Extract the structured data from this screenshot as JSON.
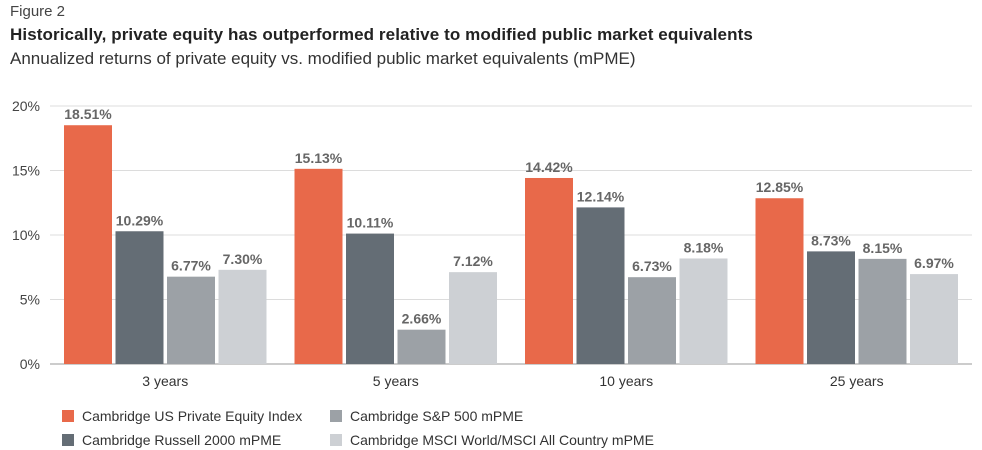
{
  "figure_label": "Figure 2",
  "chart_data": {
    "type": "bar",
    "title": "Historically, private equity has outperformed relative to modified public market equivalents",
    "subtitle": "Annualized returns of private equity vs. modified public market equivalents (mPME)",
    "categories": [
      "3 years",
      "5 years",
      "10 years",
      "25 years"
    ],
    "ylim": [
      0,
      20
    ],
    "yticks": [
      "0%",
      "5%",
      "10%",
      "15%",
      "20%"
    ],
    "ytick_values": [
      0,
      5,
      10,
      15,
      20
    ],
    "grid": true,
    "legend_position": "bottom-left",
    "series": [
      {
        "name": "Cambridge US Private Equity Index",
        "color": "#E8694A",
        "values": [
          18.51,
          15.13,
          14.42,
          12.85
        ],
        "labels": [
          "18.51%",
          "15.13%",
          "14.42%",
          "12.85%"
        ]
      },
      {
        "name": "Cambridge Russell 2000 mPME",
        "color": "#646D75",
        "values": [
          10.29,
          10.11,
          12.14,
          8.73
        ],
        "labels": [
          "10.29%",
          "10.11%",
          "12.14%",
          "8.73%"
        ]
      },
      {
        "name": "Cambridge S&P 500 mPME",
        "color": "#9CA1A6",
        "values": [
          6.77,
          2.66,
          6.73,
          8.15
        ],
        "labels": [
          "6.77%",
          "2.66%",
          "6.73%",
          "8.15%"
        ]
      },
      {
        "name": "Cambridge MSCI World/MSCI All Country mPME",
        "color": "#CDD0D4",
        "values": [
          7.3,
          7.12,
          8.18,
          6.97
        ],
        "labels": [
          "7.30%",
          "7.12%",
          "8.18%",
          "6.97%"
        ]
      }
    ]
  }
}
